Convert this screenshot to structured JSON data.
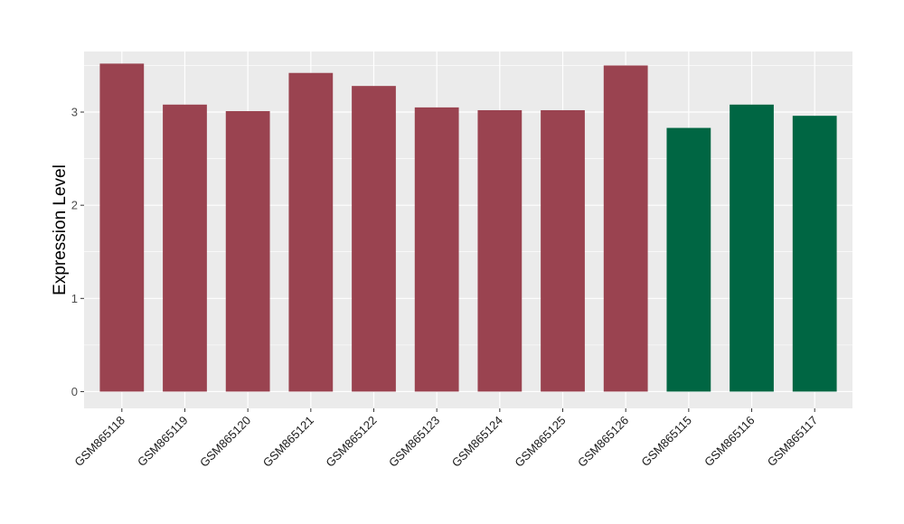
{
  "chart_data": {
    "type": "bar",
    "title": "",
    "xlabel": "",
    "ylabel": "Expression Level",
    "ylim": [
      -0.18,
      3.65
    ],
    "yticks": [
      0,
      1,
      2,
      3
    ],
    "categories": [
      "GSM865118",
      "GSM865119",
      "GSM865120",
      "GSM865121",
      "GSM865122",
      "GSM865123",
      "GSM865124",
      "GSM865125",
      "GSM865126",
      "GSM865115",
      "GSM865116",
      "GSM865117"
    ],
    "values": [
      3.52,
      3.08,
      3.01,
      3.42,
      3.28,
      3.05,
      3.02,
      3.02,
      3.5,
      2.83,
      3.08,
      2.96
    ],
    "bar_colors": [
      "#9a4350",
      "#9a4350",
      "#9a4350",
      "#9a4350",
      "#9a4350",
      "#9a4350",
      "#9a4350",
      "#9a4350",
      "#9a4350",
      "#006643",
      "#006643",
      "#006643"
    ],
    "grid": true,
    "legend": "none"
  },
  "colors": {
    "panel_background": "#ebebeb",
    "grid": "#ffffff",
    "text": "#1a1a1a",
    "axis_text": "#4d4d4d"
  }
}
